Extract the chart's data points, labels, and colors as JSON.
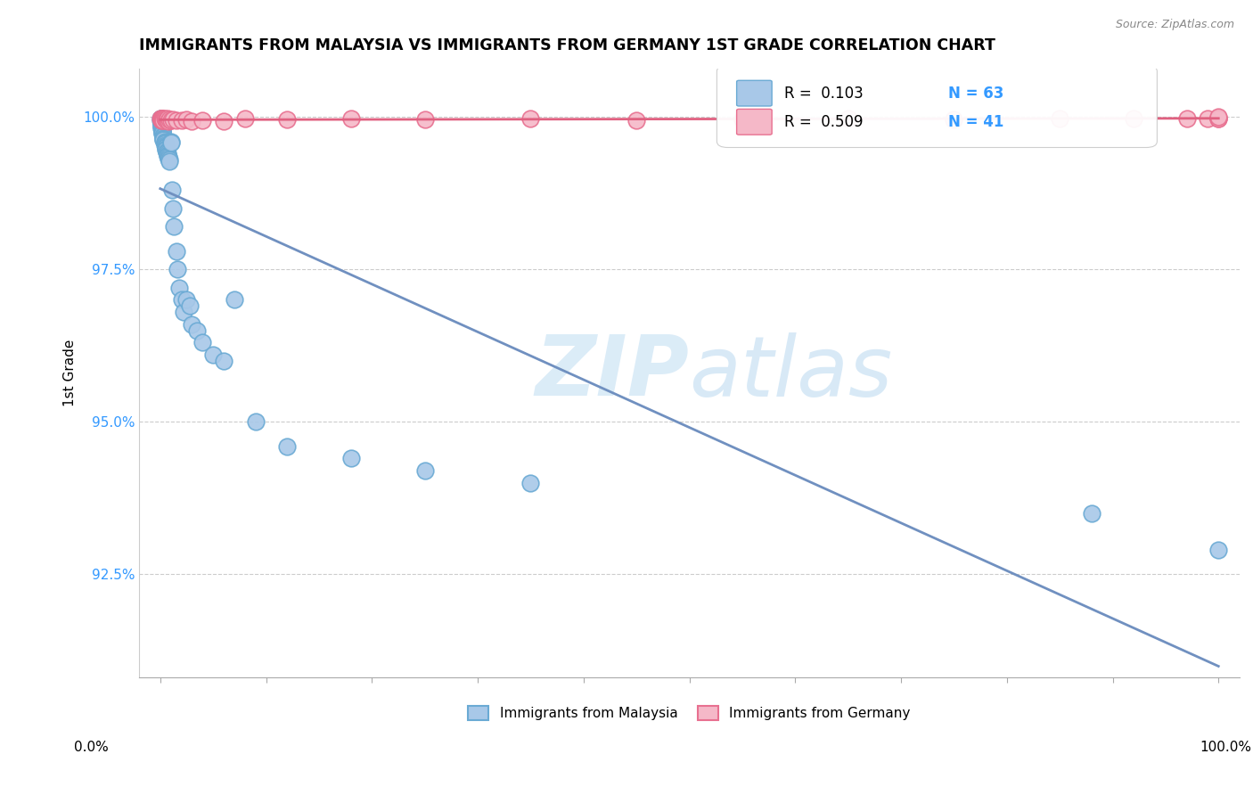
{
  "title": "IMMIGRANTS FROM MALAYSIA VS IMMIGRANTS FROM GERMANY 1ST GRADE CORRELATION CHART",
  "source": "Source: ZipAtlas.com",
  "ylabel": "1st Grade",
  "yticks": [
    0.925,
    0.95,
    0.975,
    1.0
  ],
  "ytick_labels": [
    "92.5%",
    "95.0%",
    "97.5%",
    "100.0%"
  ],
  "R_malaysia": 0.103,
  "N_malaysia": 63,
  "R_germany": 0.509,
  "N_germany": 41,
  "color_malaysia_fill": "#a8c8e8",
  "color_malaysia_edge": "#6aaad4",
  "color_germany_fill": "#f5b8c8",
  "color_germany_edge": "#e87090",
  "color_malaysia_line": "#7090c0",
  "color_germany_line": "#e06080",
  "watermark_color": "#cce4f5",
  "legend_label_malaysia": "Immigrants from Malaysia",
  "legend_label_germany": "Immigrants from Germany"
}
